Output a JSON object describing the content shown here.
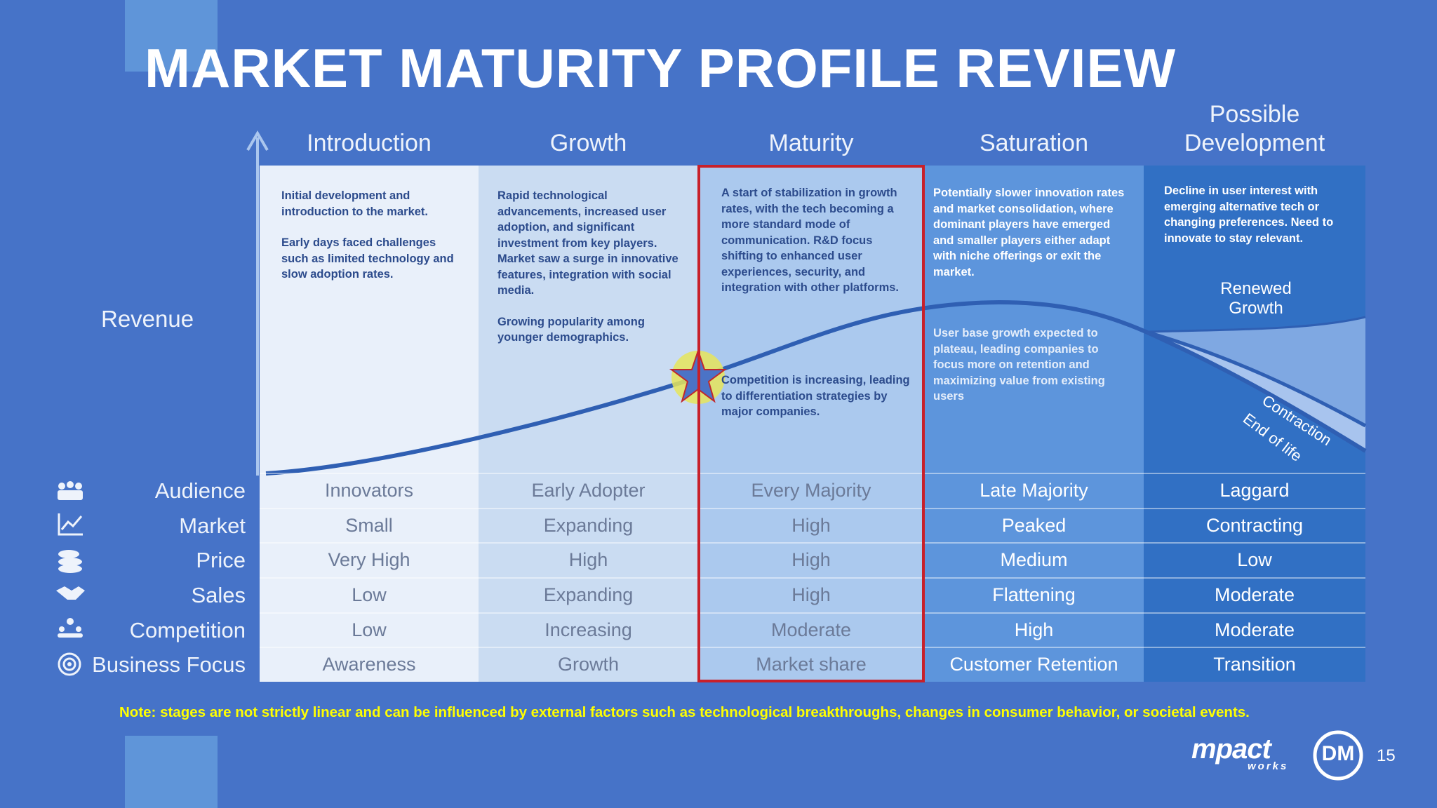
{
  "title": "MARKET MATURITY PROFILE REVIEW",
  "revenue_label": "Revenue",
  "stages": [
    {
      "name": "Introduction",
      "description": [
        "Initial development and introduction to the market.",
        "Early days faced challenges such as limited technology and slow adoption rates."
      ]
    },
    {
      "name": "Growth",
      "description": [
        "Rapid technological advancements, increased user adoption, and significant investment from key players. Market saw a surge in innovative features, integration with social media.",
        "Growing popularity among younger demographics."
      ]
    },
    {
      "name": "Maturity",
      "description": [
        "A start of stabilization in growth rates, with the tech becoming a more standard mode of communication. R&D focus shifting to enhanced user experiences, security, and integration with other platforms."
      ],
      "lower_note": "Competition is increasing, leading to differentiation strategies by major companies."
    },
    {
      "name": "Saturation",
      "description": [
        "Potentially slower innovation rates and market consolidation, where dominant players have emerged and smaller players either adapt with niche offerings or exit the market."
      ],
      "lower_note": "User base growth expected to plateau, leading companies to focus more on retention and maximizing value from existing users"
    },
    {
      "name": "Possible Development",
      "description": [
        "Decline in user interest with emerging alternative tech or changing preferences. Need to innovate to stay relevant."
      ]
    }
  ],
  "curve_labels": {
    "renewed_growth": "Renewed Growth",
    "contraction": "Contraction",
    "end_of_life": "End of life"
  },
  "row_labels": [
    "Audience",
    "Market",
    "Price",
    "Sales",
    "Competition",
    "Business Focus"
  ],
  "table": [
    [
      "Innovators",
      "Early Adopter",
      "Every Majority",
      "Late Majority",
      "Laggard"
    ],
    [
      "Small",
      "Expanding",
      "High",
      "Peaked",
      "Contracting"
    ],
    [
      "Very High",
      "High",
      "High",
      "Medium",
      "Low"
    ],
    [
      "Low",
      "Expanding",
      "High",
      "Flattening",
      "Moderate"
    ],
    [
      "Low",
      "Increasing",
      "Moderate",
      "High",
      "Moderate"
    ],
    [
      "Awareness",
      "Growth",
      "Market share",
      "Customer Retention",
      "Transition"
    ]
  ],
  "note": "Note: stages are not strictly linear and can be influenced by external factors such as technological breakthroughs, changes in consumer behavior, or societal events.",
  "logo": {
    "brand": "mpact",
    "sub": "works",
    "badge": "DM"
  },
  "page_number": "15"
}
